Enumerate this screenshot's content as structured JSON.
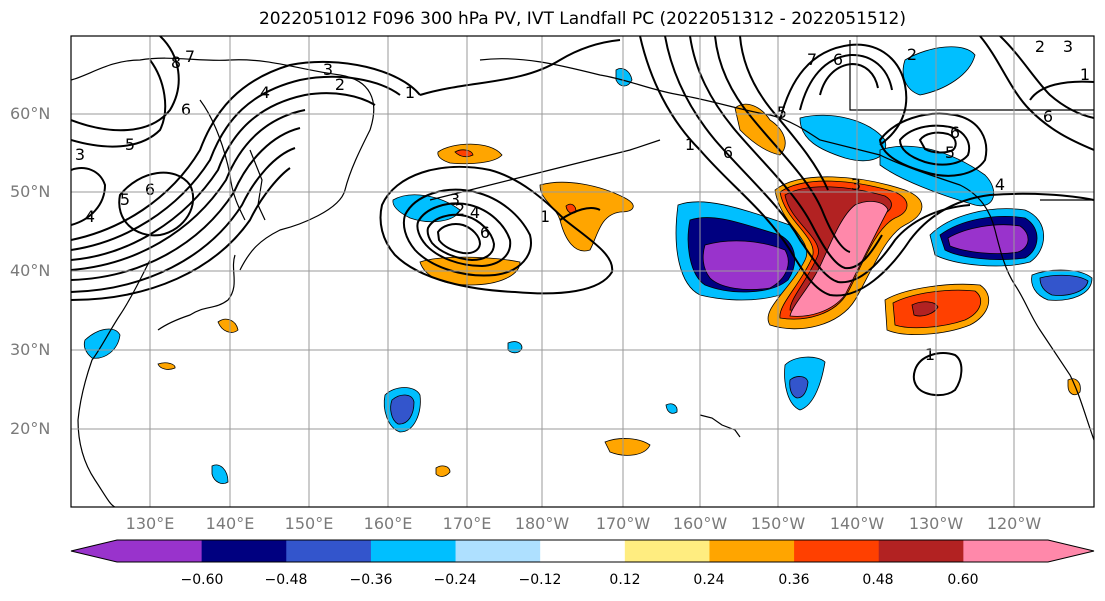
{
  "title": "2022051012 F096 300 hPa PV, IVT Landfall PC (2022051312 - 2022051512)",
  "lat_labels": [
    "60°N",
    "50°N",
    "40°N",
    "30°N",
    "20°N"
  ],
  "lon_labels": [
    "130°E",
    "140°E",
    "150°E",
    "160°E",
    "170°E",
    "180°W",
    "170°W",
    "160°W",
    "150°W",
    "140°W",
    "130°W",
    "120°W"
  ],
  "colorbar": {
    "colors": [
      "#9933cc",
      "#000080",
      "#3355cc",
      "#00bfff",
      "#aee0ff",
      "#ffffff",
      "#ffed80",
      "#ffa500",
      "#ff4000",
      "#b22222",
      "#ff88aa"
    ],
    "ticks": [
      "−0.60",
      "−0.48",
      "−0.36",
      "−0.24",
      "−0.12",
      "0.12",
      "0.24",
      "0.36",
      "0.48",
      "0.60"
    ]
  },
  "contour_labels": [
    "8",
    "7",
    "6",
    "5",
    "4",
    "3",
    "2",
    "1",
    "3",
    "2",
    "1",
    "4",
    "6",
    "5",
    "6",
    "3",
    "4",
    "6",
    "1",
    "7",
    "6",
    "5",
    "6",
    "5",
    "4",
    "3",
    "2",
    "1",
    "3",
    "6",
    "2",
    "1"
  ]
}
